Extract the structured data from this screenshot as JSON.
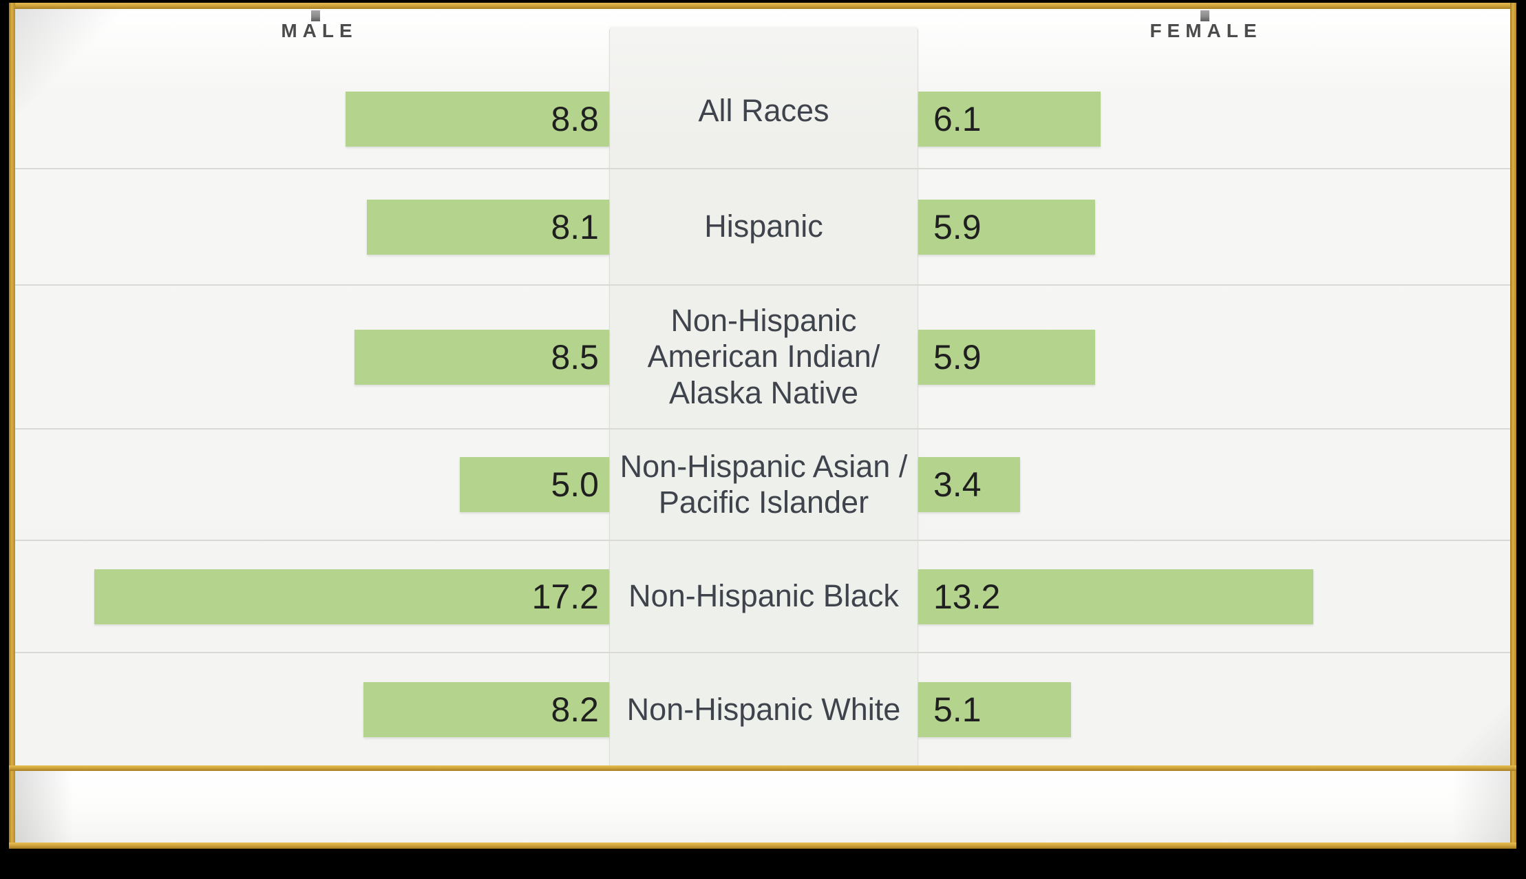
{
  "axis_header": {
    "male_label": "MALE",
    "female_label": "FEMALE"
  },
  "chart_data": {
    "type": "bar",
    "subtype": "bidirectional-horizontal (population pyramid)",
    "categories": [
      "All Races",
      "Hispanic",
      "Non-Hispanic American Indian/ Alaska Native",
      "Non-Hispanic Asian / Pacific Islander",
      "Non-Hispanic Black",
      "Non-Hispanic White"
    ],
    "category_lines": [
      [
        "All Races"
      ],
      [
        "Hispanic"
      ],
      [
        "Non-Hispanic",
        "American Indian/",
        "Alaska Native"
      ],
      [
        "Non-Hispanic Asian /",
        "Pacific Islander"
      ],
      [
        "Non-Hispanic Black"
      ],
      [
        "Non-Hispanic White"
      ]
    ],
    "series": [
      {
        "name": "MALE",
        "side": "left",
        "values": [
          8.8,
          8.1,
          8.5,
          5.0,
          17.2,
          8.2
        ]
      },
      {
        "name": "FEMALE",
        "side": "right",
        "values": [
          6.1,
          5.9,
          5.9,
          3.4,
          13.2,
          5.1
        ]
      }
    ],
    "value_decimals": 1,
    "bar_color": "#b4d38d",
    "axis_max_per_side": 19.8,
    "grid": "horizontal-row-separators",
    "legend_position": "top-axis-labels"
  },
  "colors": {
    "frame_gold": "#cda23b",
    "canvas_black": "#000000",
    "bar_green": "#b4d38d",
    "panel_bg": "#f5f5f3",
    "center_column_bg": "#eef0eb",
    "gridline": "#d9d9d6",
    "value_text": "#1f1f1f",
    "category_text": "#3f444c",
    "axis_label_text": "#4b4b4b"
  }
}
